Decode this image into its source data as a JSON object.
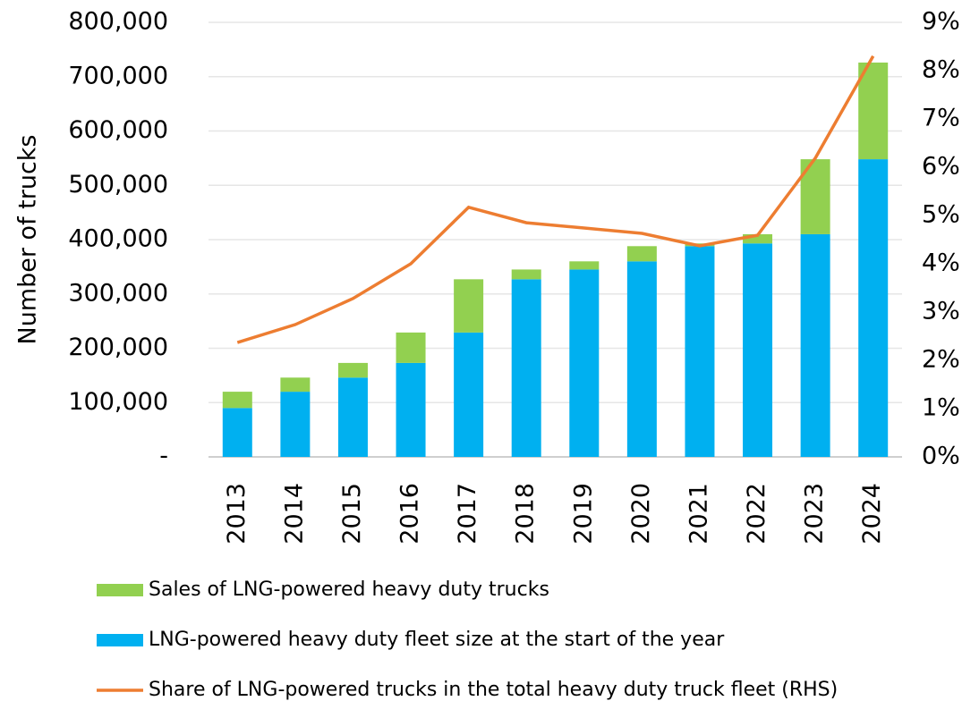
{
  "chart_data": {
    "type": "bar",
    "categories": [
      "2013",
      "2014",
      "2015",
      "2016",
      "2017",
      "2018",
      "2019",
      "2020",
      "2021",
      "2022",
      "2023",
      "2024"
    ],
    "series": [
      {
        "name": "Sales of LNG-powered heavy duty trucks",
        "color": "#92d050",
        "type": "bar",
        "values": [
          30000,
          26000,
          27000,
          56000,
          98000,
          18000,
          15000,
          28000,
          5000,
          17000,
          138000,
          178000
        ]
      },
      {
        "name": "LNG-powered heavy duty fleet size at the start of the year",
        "color": "#00b0f0",
        "type": "bar",
        "values": [
          90000,
          120000,
          146000,
          173000,
          229000,
          327000,
          345000,
          360000,
          388000,
          393000,
          410000,
          548000
        ]
      },
      {
        "name": "Share of LNG-powered trucks in the total heavy duty truck fleet (RHS)",
        "color": "#ed7d31",
        "type": "line",
        "axis": "y2",
        "values": [
          2.37,
          2.74,
          3.28,
          4.0,
          5.17,
          4.85,
          4.74,
          4.63,
          4.37,
          4.59,
          6.19,
          8.3
        ]
      }
    ],
    "ylabel": "Number of trucks",
    "ylim": [
      0,
      800000
    ],
    "yticks": [
      {
        "value": 0,
        "label": "-"
      },
      {
        "value": 100000,
        "label": "100,000"
      },
      {
        "value": 200000,
        "label": "200,000"
      },
      {
        "value": 300000,
        "label": "300,000"
      },
      {
        "value": 400000,
        "label": "400,000"
      },
      {
        "value": 500000,
        "label": "500,000"
      },
      {
        "value": 600000,
        "label": "600,000"
      },
      {
        "value": 700000,
        "label": "700,000"
      },
      {
        "value": 800000,
        "label": "800,000"
      }
    ],
    "y2lim": [
      0,
      9
    ],
    "y2ticks": [
      {
        "value": 0,
        "label": "0%"
      },
      {
        "value": 1,
        "label": "1%"
      },
      {
        "value": 2,
        "label": "2%"
      },
      {
        "value": 3,
        "label": "3%"
      },
      {
        "value": 4,
        "label": "4%"
      },
      {
        "value": 5,
        "label": "5%"
      },
      {
        "value": 6,
        "label": "6%"
      },
      {
        "value": 7,
        "label": "7%"
      },
      {
        "value": 8,
        "label": "8%"
      },
      {
        "value": 9,
        "label": "9%"
      }
    ],
    "grid": true,
    "stacked": true,
    "legend": "bottom"
  }
}
